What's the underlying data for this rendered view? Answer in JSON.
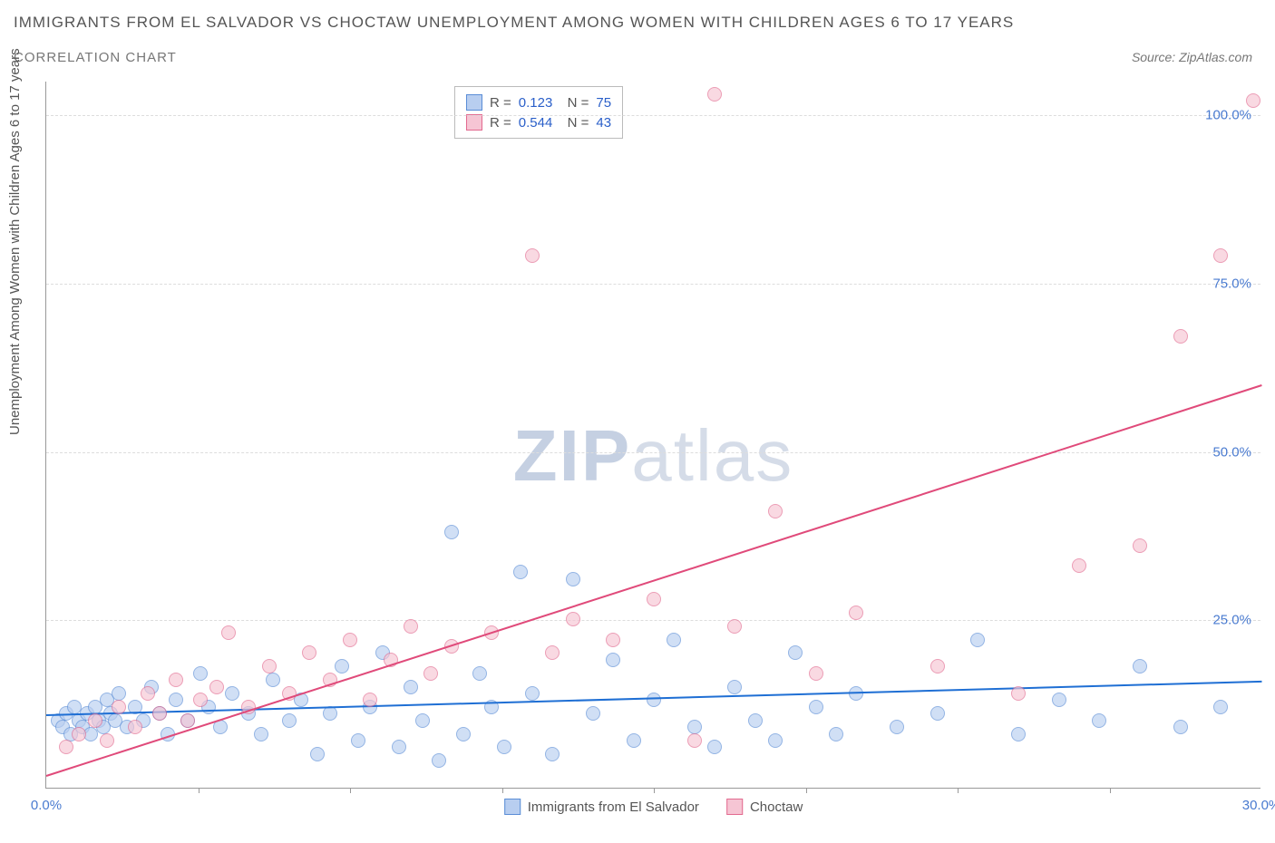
{
  "title": "IMMIGRANTS FROM EL SALVADOR VS CHOCTAW UNEMPLOYMENT AMONG WOMEN WITH CHILDREN AGES 6 TO 17 YEARS",
  "subtitle": "CORRELATION CHART",
  "source": "Source: ZipAtlas.com",
  "ylabel": "Unemployment Among Women with Children Ages 6 to 17 years",
  "watermark_zip": "ZIP",
  "watermark_atlas": "atlas",
  "chart": {
    "type": "scatter",
    "xlim": [
      0,
      30
    ],
    "ylim": [
      0,
      105
    ],
    "xticks": [
      {
        "pos": 0,
        "label": "0.0%"
      },
      {
        "pos": 30,
        "label": "30.0%"
      }
    ],
    "xtick_marks": [
      3.75,
      7.5,
      11.25,
      15,
      18.75,
      22.5,
      26.25
    ],
    "yticks": [
      {
        "pos": 25,
        "label": "25.0%"
      },
      {
        "pos": 50,
        "label": "50.0%"
      },
      {
        "pos": 75,
        "label": "75.0%"
      },
      {
        "pos": 100,
        "label": "100.0%"
      }
    ],
    "grid_color": "#e5e5e5",
    "background": "#ffffff",
    "series": [
      {
        "name": "Immigrants from El Salvador",
        "color_fill": "#b8cef0",
        "color_stroke": "#5a8dd6",
        "r": 0.123,
        "n": 75,
        "trend": {
          "x1": 0,
          "y1": 11,
          "x2": 30,
          "y2": 16,
          "color": "#1f6fd4"
        },
        "points": [
          [
            0.3,
            10
          ],
          [
            0.4,
            9
          ],
          [
            0.5,
            11
          ],
          [
            0.6,
            8
          ],
          [
            0.7,
            12
          ],
          [
            0.8,
            10
          ],
          [
            0.9,
            9
          ],
          [
            1.0,
            11
          ],
          [
            1.1,
            8
          ],
          [
            1.2,
            12
          ],
          [
            1.3,
            10
          ],
          [
            1.4,
            9
          ],
          [
            1.5,
            13
          ],
          [
            1.6,
            11
          ],
          [
            1.7,
            10
          ],
          [
            1.8,
            14
          ],
          [
            2.0,
            9
          ],
          [
            2.2,
            12
          ],
          [
            2.4,
            10
          ],
          [
            2.6,
            15
          ],
          [
            2.8,
            11
          ],
          [
            3.0,
            8
          ],
          [
            3.2,
            13
          ],
          [
            3.5,
            10
          ],
          [
            3.8,
            17
          ],
          [
            4.0,
            12
          ],
          [
            4.3,
            9
          ],
          [
            4.6,
            14
          ],
          [
            5.0,
            11
          ],
          [
            5.3,
            8
          ],
          [
            5.6,
            16
          ],
          [
            6.0,
            10
          ],
          [
            6.3,
            13
          ],
          [
            6.7,
            5
          ],
          [
            7.0,
            11
          ],
          [
            7.3,
            18
          ],
          [
            7.7,
            7
          ],
          [
            8.0,
            12
          ],
          [
            8.3,
            20
          ],
          [
            8.7,
            6
          ],
          [
            9.0,
            15
          ],
          [
            9.3,
            10
          ],
          [
            9.7,
            4
          ],
          [
            10.0,
            38
          ],
          [
            10.3,
            8
          ],
          [
            10.7,
            17
          ],
          [
            11.0,
            12
          ],
          [
            11.3,
            6
          ],
          [
            11.7,
            32
          ],
          [
            12.0,
            14
          ],
          [
            12.5,
            5
          ],
          [
            13.0,
            31
          ],
          [
            13.5,
            11
          ],
          [
            14.0,
            19
          ],
          [
            14.5,
            7
          ],
          [
            15.0,
            13
          ],
          [
            15.5,
            22
          ],
          [
            16.0,
            9
          ],
          [
            16.5,
            6
          ],
          [
            17.0,
            15
          ],
          [
            17.5,
            10
          ],
          [
            18.0,
            7
          ],
          [
            18.5,
            20
          ],
          [
            19.0,
            12
          ],
          [
            19.5,
            8
          ],
          [
            20.0,
            14
          ],
          [
            21.0,
            9
          ],
          [
            22.0,
            11
          ],
          [
            23.0,
            22
          ],
          [
            24.0,
            8
          ],
          [
            25.0,
            13
          ],
          [
            26.0,
            10
          ],
          [
            27.0,
            18
          ],
          [
            28.0,
            9
          ],
          [
            29.0,
            12
          ]
        ]
      },
      {
        "name": "Choctaw",
        "color_fill": "#f6c5d4",
        "color_stroke": "#e26a8f",
        "r": 0.544,
        "n": 43,
        "trend": {
          "x1": 0,
          "y1": 2,
          "x2": 30,
          "y2": 60,
          "color": "#e04a7a"
        },
        "points": [
          [
            0.5,
            6
          ],
          [
            0.8,
            8
          ],
          [
            1.2,
            10
          ],
          [
            1.5,
            7
          ],
          [
            1.8,
            12
          ],
          [
            2.2,
            9
          ],
          [
            2.5,
            14
          ],
          [
            2.8,
            11
          ],
          [
            3.2,
            16
          ],
          [
            3.5,
            10
          ],
          [
            3.8,
            13
          ],
          [
            4.2,
            15
          ],
          [
            4.5,
            23
          ],
          [
            5.0,
            12
          ],
          [
            5.5,
            18
          ],
          [
            6.0,
            14
          ],
          [
            6.5,
            20
          ],
          [
            7.0,
            16
          ],
          [
            7.5,
            22
          ],
          [
            8.0,
            13
          ],
          [
            8.5,
            19
          ],
          [
            9.0,
            24
          ],
          [
            9.5,
            17
          ],
          [
            10.0,
            21
          ],
          [
            11.0,
            23
          ],
          [
            12.0,
            79
          ],
          [
            12.5,
            20
          ],
          [
            13.0,
            25
          ],
          [
            14.0,
            22
          ],
          [
            15.0,
            28
          ],
          [
            16.0,
            7
          ],
          [
            16.5,
            103
          ],
          [
            17.0,
            24
          ],
          [
            18.0,
            41
          ],
          [
            19.0,
            17
          ],
          [
            20.0,
            26
          ],
          [
            22.0,
            18
          ],
          [
            24.0,
            14
          ],
          [
            25.5,
            33
          ],
          [
            27.0,
            36
          ],
          [
            28.0,
            67
          ],
          [
            29.0,
            79
          ],
          [
            29.8,
            102
          ]
        ]
      }
    ]
  }
}
